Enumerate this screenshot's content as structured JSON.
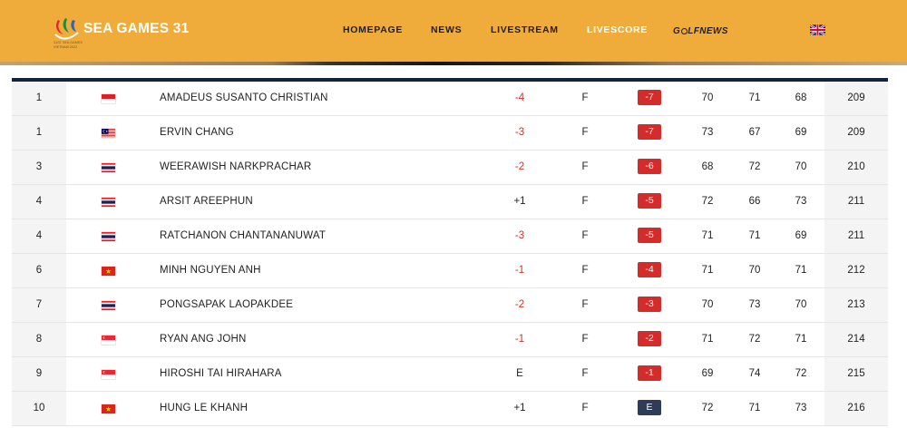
{
  "header": {
    "logo_text": "SEA GAMES 31",
    "logo_subtext": "31ST SEA GAMES VIETNAM 2022",
    "background_color": "#f0ac3a",
    "nav": [
      {
        "label": "HOMEPAGE",
        "active": false
      },
      {
        "label": "NEWS",
        "active": false
      },
      {
        "label": "LIVESTREAM",
        "active": false
      },
      {
        "label": "LIVESCORE",
        "active": true
      }
    ],
    "golfnews": {
      "prefix": "G",
      "suffix": "LFNEWS"
    },
    "language_icon": "uk-flag-icon"
  },
  "leaderboard": {
    "rows": [
      {
        "pos": "1",
        "country": "indonesia",
        "name": "AMADEUS SUSANTO CHRISTIAN",
        "today": "-4",
        "thru": "F",
        "to_par": "-7",
        "r1": "70",
        "r2": "71",
        "r3": "68",
        "total": "209"
      },
      {
        "pos": "1",
        "country": "malaysia",
        "name": "ERVIN CHANG",
        "today": "-3",
        "thru": "F",
        "to_par": "-7",
        "r1": "73",
        "r2": "67",
        "r3": "69",
        "total": "209"
      },
      {
        "pos": "3",
        "country": "thailand",
        "name": "WEERAWISH NARKPRACHAR",
        "today": "-2",
        "thru": "F",
        "to_par": "-6",
        "r1": "68",
        "r2": "72",
        "r3": "70",
        "total": "210"
      },
      {
        "pos": "4",
        "country": "thailand",
        "name": "ARSIT AREEPHUN",
        "today": "+1",
        "thru": "F",
        "to_par": "-5",
        "r1": "72",
        "r2": "66",
        "r3": "73",
        "total": "211"
      },
      {
        "pos": "4",
        "country": "thailand",
        "name": "RATCHANON CHANTANANUWAT",
        "today": "-3",
        "thru": "F",
        "to_par": "-5",
        "r1": "71",
        "r2": "71",
        "r3": "69",
        "total": "211"
      },
      {
        "pos": "6",
        "country": "vietnam",
        "name": "MINH NGUYEN ANH",
        "today": "-1",
        "thru": "F",
        "to_par": "-4",
        "r1": "71",
        "r2": "70",
        "r3": "71",
        "total": "212"
      },
      {
        "pos": "7",
        "country": "thailand",
        "name": "PONGSAPAK LAOPAKDEE",
        "today": "-2",
        "thru": "F",
        "to_par": "-3",
        "r1": "70",
        "r2": "73",
        "r3": "70",
        "total": "213"
      },
      {
        "pos": "8",
        "country": "singapore",
        "name": "RYAN ANG JOHN",
        "today": "-1",
        "thru": "F",
        "to_par": "-2",
        "r1": "71",
        "r2": "72",
        "r3": "71",
        "total": "214"
      },
      {
        "pos": "9",
        "country": "singapore",
        "name": "HIROSHI TAI HIRAHARA",
        "today": "E",
        "thru": "F",
        "to_par": "-1",
        "r1": "69",
        "r2": "74",
        "r3": "72",
        "total": "215"
      },
      {
        "pos": "10",
        "country": "vietnam",
        "name": "HUNG LE KHANH",
        "today": "+1",
        "thru": "F",
        "to_par": "E",
        "r1": "72",
        "r2": "71",
        "r3": "73",
        "total": "216"
      }
    ]
  },
  "colors": {
    "under_par_red": "#d1322d",
    "badge_red": "#d42b2b",
    "badge_even": "#2f3c57",
    "table_header_bar": "#13233d"
  }
}
